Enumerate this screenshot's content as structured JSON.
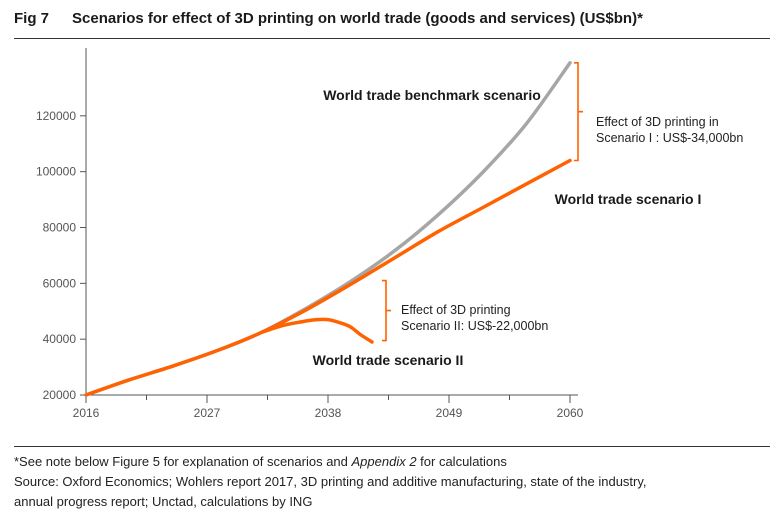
{
  "header": {
    "fig_label": "Fig 7",
    "title": "Scenarios for effect of 3D printing on world trade (goods and services) (US$bn)*"
  },
  "chart_data": {
    "type": "line",
    "title": "Scenarios for effect of 3D printing on world trade (goods and services) (US$bn)*",
    "xlabel": "",
    "ylabel": "",
    "xlim": [
      2016,
      2060
    ],
    "ylim": [
      20000,
      140000
    ],
    "x_ticks": [
      2016,
      2027,
      2038,
      2049,
      2060
    ],
    "y_ticks": [
      20000,
      40000,
      60000,
      80000,
      100000,
      120000
    ],
    "grid": false,
    "series": [
      {
        "name": "World trade benchmark scenario",
        "color": "#a6a6a6",
        "x": [
          2016,
          2020,
          2024,
          2028,
          2032,
          2036,
          2040,
          2044,
          2048,
          2052,
          2056,
          2060
        ],
        "y": [
          20000,
          25500,
          30500,
          36000,
          42500,
          51000,
          60500,
          71500,
          84500,
          99500,
          117000,
          139000
        ]
      },
      {
        "name": "World trade scenario I",
        "color": "#ff6200",
        "x": [
          2016,
          2020,
          2024,
          2028,
          2032,
          2036,
          2040,
          2044,
          2048,
          2052,
          2056,
          2060
        ],
        "y": [
          20000,
          25500,
          30500,
          36000,
          42500,
          50500,
          59500,
          69000,
          78500,
          87000,
          95500,
          104000
        ]
      },
      {
        "name": "World trade scenario II",
        "color": "#ff6200",
        "x": [
          2032,
          2034,
          2036,
          2037,
          2038,
          2039,
          2040,
          2041,
          2042
        ],
        "y": [
          42500,
          45000,
          46500,
          47000,
          47000,
          46000,
          44500,
          41500,
          39000
        ]
      }
    ],
    "annotations": {
      "benchmark_label": "World trade benchmark scenario",
      "scenario1_label": "World trade scenario I",
      "scenario2_label": "World trade scenario II",
      "effect1_line1": "Effect of 3D printing in",
      "effect1_line2": "Scenario I : US$-34,000bn",
      "effect2_line1": "Effect of 3D printing",
      "effect2_line2": "Scenario II: US$-22,000bn"
    }
  },
  "footer": {
    "note_prefix": "*See note below Figure 5 for explanation of scenarios and ",
    "note_italic": "Appendix 2",
    "note_suffix": " for calculations",
    "source_line1": "Source: Oxford Economics; Wohlers report 2017, 3D printing and additive manufacturing, state of the industry,",
    "source_line2": "annual progress report; Unctad, calculations by ING"
  }
}
